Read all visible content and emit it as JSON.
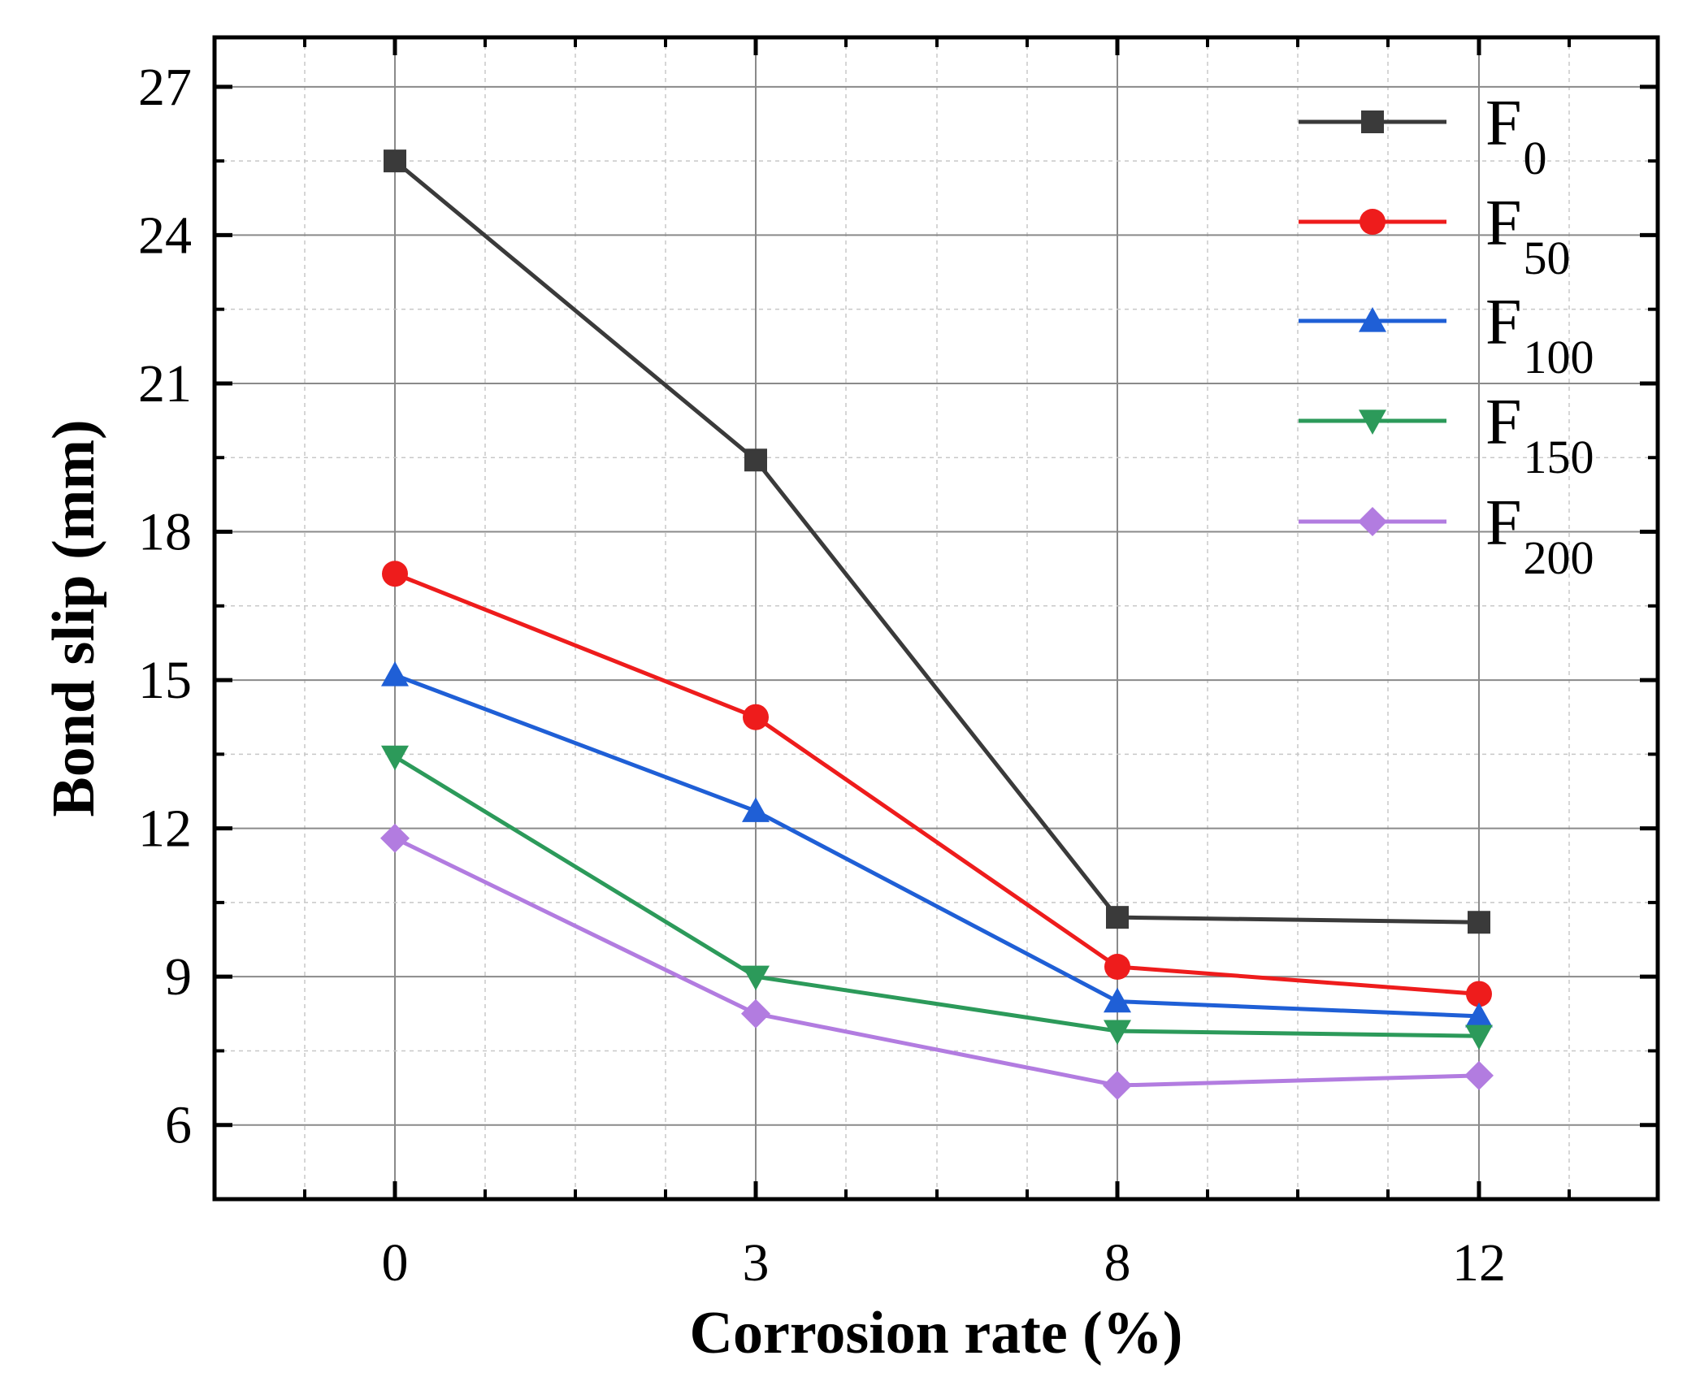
{
  "chart_data": {
    "type": "line",
    "title": "",
    "xlabel": "Corrosion rate (%)",
    "ylabel": "Bond slip (mm)",
    "categories": [
      "0",
      "3",
      "8",
      "12"
    ],
    "ylim": [
      4.5,
      28
    ],
    "yticks": [
      6,
      9,
      12,
      15,
      18,
      21,
      24,
      27
    ],
    "grid": true,
    "legend_position": "top-right",
    "series": [
      {
        "name": "F",
        "subscript": "0",
        "marker": "square",
        "color": "#3a3a3a",
        "values": [
          25.5,
          19.45,
          10.2,
          10.1
        ]
      },
      {
        "name": "F",
        "subscript": "50",
        "marker": "circle",
        "color": "#ee1c1c",
        "values": [
          17.15,
          14.25,
          9.2,
          8.65
        ]
      },
      {
        "name": "F",
        "subscript": "100",
        "marker": "triangle-up",
        "color": "#1f5fd6",
        "values": [
          15.1,
          12.35,
          8.5,
          8.2
        ]
      },
      {
        "name": "F",
        "subscript": "150",
        "marker": "triangle-down",
        "color": "#2c9a5a",
        "values": [
          13.45,
          9.0,
          7.9,
          7.8
        ]
      },
      {
        "name": "F",
        "subscript": "200",
        "marker": "diamond",
        "color": "#b27ce0",
        "values": [
          11.8,
          8.25,
          6.8,
          7.0
        ]
      }
    ]
  }
}
